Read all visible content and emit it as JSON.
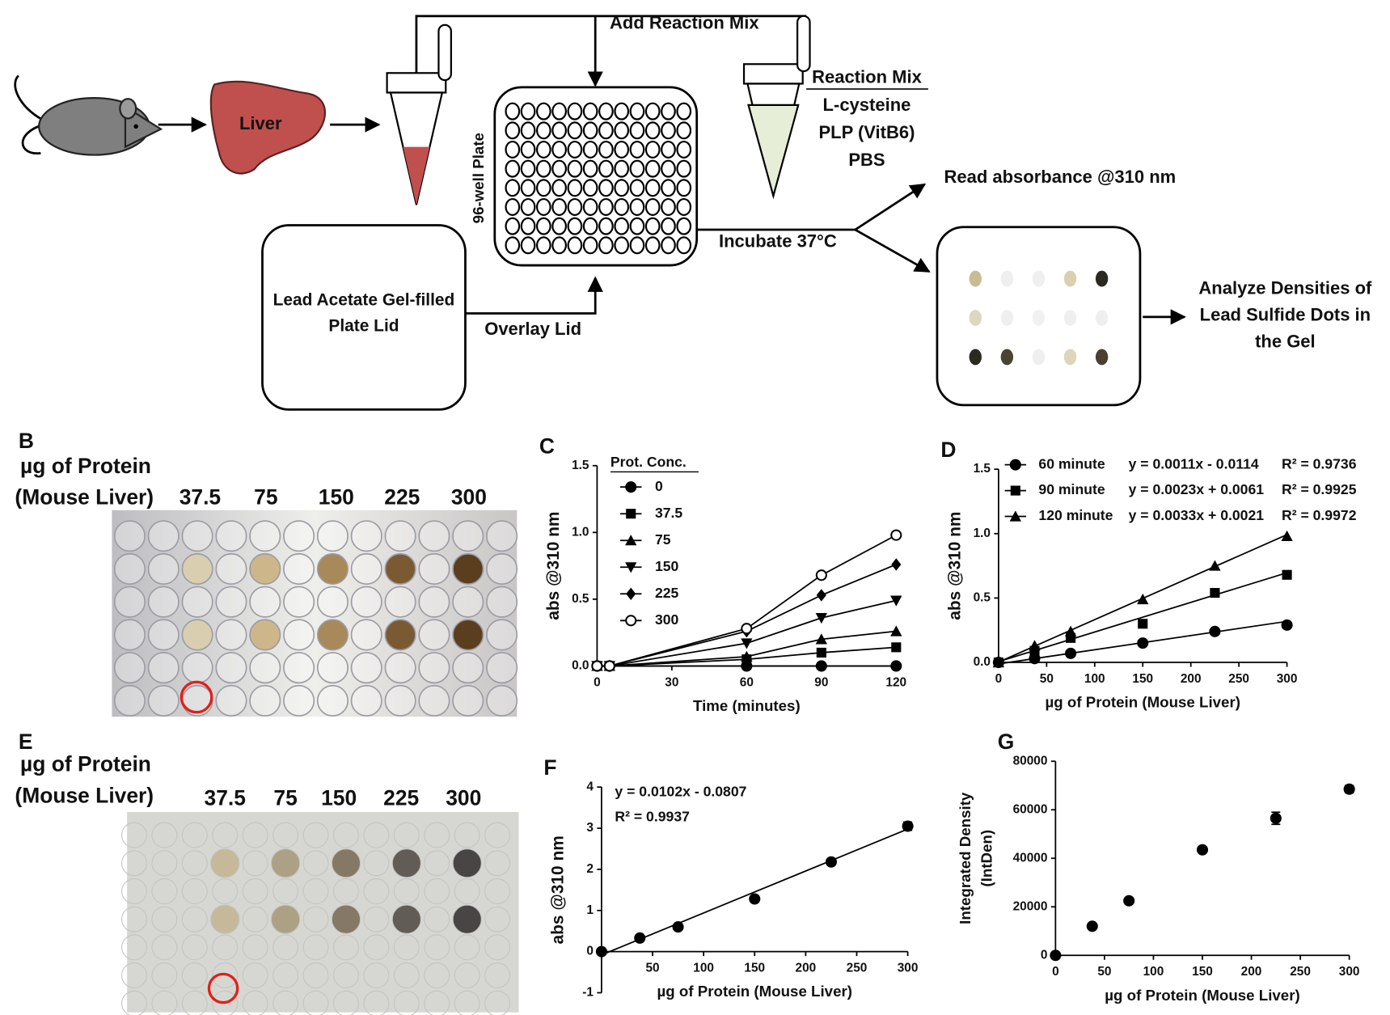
{
  "diagram": {
    "liver": "Liver",
    "add_reaction_mix": "Add Reaction Mix",
    "plate": "96-well Plate",
    "reaction_mix": {
      "title": "Reaction Mix",
      "items": [
        "L-cysteine",
        "PLP (VitB6)",
        "PBS"
      ]
    },
    "lid": [
      "Lead Acetate Gel-filled",
      "Plate Lid"
    ],
    "overlay": "Overlay Lid",
    "incubate": "Incubate 37°C",
    "read": "Read absorbance @310 nm",
    "analyze": [
      "Analyze Densities of",
      "Lead Sulfide Dots in",
      "the Gel"
    ]
  },
  "photos": [
    {
      "letter": "B",
      "label": [
        "µg of Protein",
        "(Mouse Liver)"
      ],
      "amounts": [
        "37.5",
        "75",
        "150",
        "225",
        "300"
      ]
    },
    {
      "letter": "E",
      "label": [
        "µg of Protein",
        "(Mouse Liver)"
      ],
      "amounts": [
        "37.5",
        "75",
        "150",
        "225",
        "300"
      ]
    }
  ],
  "chart_data": [
    {
      "letter": "C",
      "type": "line",
      "ylabel": "abs @310 nm",
      "xlabel": "Time (minutes)",
      "legend_title": "Prot. Conc.",
      "x": [
        0,
        5,
        60,
        90,
        120
      ],
      "xlim": [
        0,
        120
      ],
      "xticks": [
        0,
        30,
        60,
        90,
        120
      ],
      "ylim": [
        0,
        1.5
      ],
      "yticks": [
        {
          "value": 0,
          "label": "0.0"
        },
        0.5,
        {
          "value": 1,
          "label": "1.0"
        },
        1.5
      ],
      "series": [
        {
          "name": "0",
          "marker": "circle",
          "color": "#000000",
          "values": [
            0,
            0,
            0,
            0,
            0
          ]
        },
        {
          "name": "37.5",
          "marker": "square",
          "color": "#000000",
          "values": [
            0,
            0,
            0.05,
            0.1,
            0.14
          ]
        },
        {
          "name": "75",
          "marker": "triangle",
          "color": "#000000",
          "values": [
            0,
            0,
            0.07,
            0.2,
            0.26
          ]
        },
        {
          "name": "150",
          "marker": "triangle-down",
          "color": "#000000",
          "values": [
            0,
            0,
            0.17,
            0.36,
            0.49
          ]
        },
        {
          "name": "225",
          "marker": "diamond",
          "color": "#000000",
          "values": [
            0,
            0,
            0.26,
            0.53,
            0.76
          ]
        },
        {
          "name": "300",
          "marker": "circle-open",
          "color": "#000000",
          "values": [
            0,
            0,
            0.28,
            0.68,
            0.98
          ]
        }
      ]
    },
    {
      "letter": "D",
      "type": "scatter",
      "ylabel": "abs @310 nm",
      "xlabel": "µg of Protein (Mouse Liver)",
      "x": [
        0,
        37.5,
        75,
        150,
        225,
        300
      ],
      "xlim": [
        0,
        300
      ],
      "xticks": [
        0,
        50,
        100,
        150,
        200,
        250,
        300
      ],
      "ylim": [
        0,
        1.5
      ],
      "yticks": [
        {
          "value": 0,
          "label": "0.0"
        },
        0.5,
        {
          "value": 1,
          "label": "1.0"
        },
        1.5
      ],
      "series": [
        {
          "name": "60 minute",
          "marker": "circle",
          "color": "#000000",
          "values": [
            0,
            0.03,
            0.07,
            0.15,
            0.24,
            0.29
          ],
          "equation": "y = 0.0011x - 0.0114",
          "r2": "R² = 0.9736",
          "fit": {
            "slope": 0.0011,
            "intercept": -0.0114
          }
        },
        {
          "name": "90 minute",
          "marker": "square",
          "color": "#000000",
          "values": [
            0,
            0.09,
            0.19,
            0.3,
            0.54,
            0.68
          ],
          "equation": "y = 0.0023x + 0.0061",
          "r2": "R² = 0.9925",
          "fit": {
            "slope": 0.0023,
            "intercept": 0.0061
          }
        },
        {
          "name": "120 minute",
          "marker": "triangle",
          "color": "#000000",
          "values": [
            0,
            0.13,
            0.24,
            0.49,
            0.75,
            0.98
          ],
          "equation": "y = 0.0033x + 0.0021",
          "r2": "R² = 0.9972",
          "fit": {
            "slope": 0.0033,
            "intercept": 0.0021
          }
        }
      ]
    },
    {
      "letter": "F",
      "type": "scatter",
      "ylabel": "abs @310 nm",
      "xlabel": "µg of Protein (Mouse Liver)",
      "equation": "y = 0.0102x - 0.0807",
      "r2": "R² = 0.9937",
      "fit": {
        "slope": 0.0102,
        "intercept": -0.0807
      },
      "x": [
        0,
        37.5,
        75,
        150,
        225,
        300
      ],
      "xlim": [
        0,
        300
      ],
      "xticks": [
        50,
        100,
        150,
        200,
        250,
        300
      ],
      "ylim": [
        -1,
        4
      ],
      "yticks": [
        -1,
        0,
        1,
        2,
        3,
        4
      ],
      "series": [
        {
          "marker": "circle",
          "color": "#000000",
          "values": [
            0,
            0.33,
            0.6,
            1.28,
            2.18,
            3.05
          ],
          "errors": [
            0,
            0,
            0,
            0,
            0,
            0.1
          ]
        }
      ]
    },
    {
      "letter": "G",
      "type": "scatter",
      "ylabel": [
        "Integrated Density",
        "(IntDen)"
      ],
      "xlabel": "µg of Protein (Mouse Liver)",
      "x": [
        0,
        37.5,
        75,
        150,
        225,
        300
      ],
      "xlim": [
        0,
        300
      ],
      "xticks": [
        0,
        50,
        100,
        150,
        200,
        250,
        300
      ],
      "ylim": [
        0,
        80000
      ],
      "yticks": [
        0,
        20000,
        40000,
        60000,
        80000
      ],
      "series": [
        {
          "marker": "circle",
          "color": "#000000",
          "values": [
            0,
            12000,
            22500,
            43500,
            56500,
            68500
          ],
          "errors": [
            0,
            0,
            0,
            0,
            2500,
            1500
          ]
        }
      ]
    }
  ]
}
